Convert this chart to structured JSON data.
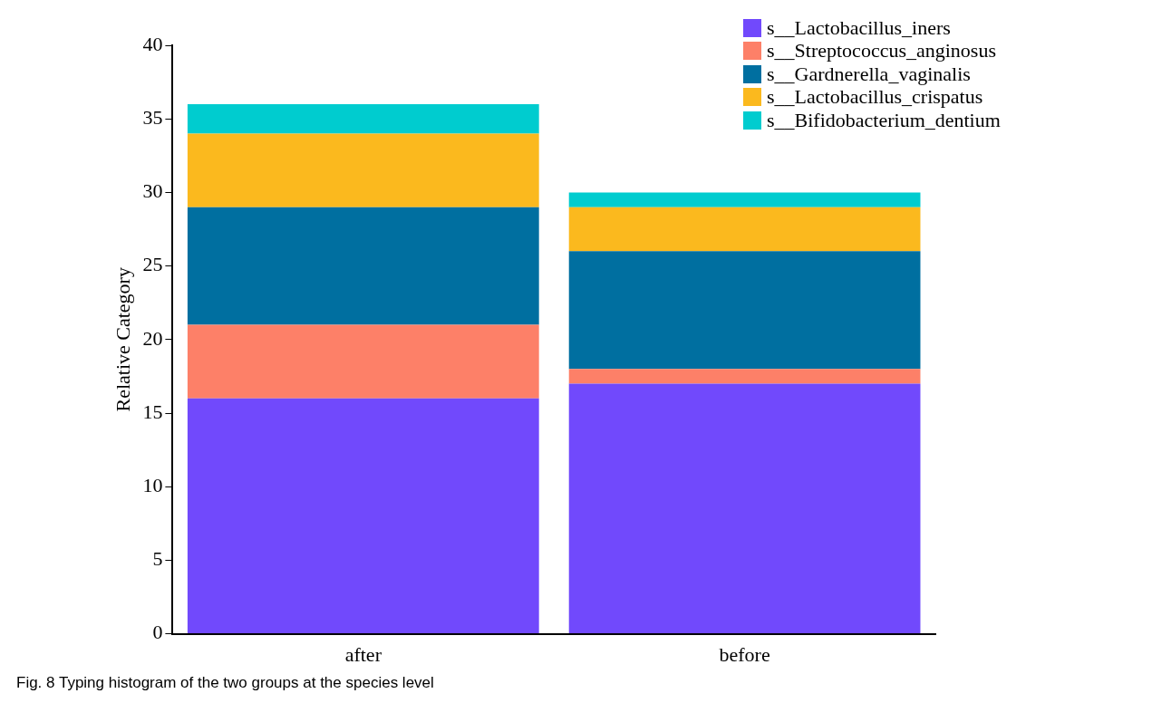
{
  "chart_data": {
    "type": "bar",
    "stacked": true,
    "ylabel": "Relative Category",
    "categories": [
      "after",
      "before"
    ],
    "series": [
      {
        "name": "s__Lactobacillus_iners",
        "color": "#7149fc",
        "values": [
          16,
          17
        ]
      },
      {
        "name": "s__Streptococcus_anginosus",
        "color": "#fd8068",
        "values": [
          5,
          1
        ]
      },
      {
        "name": "s__Gardnerella_vaginalis",
        "color": "#006fa0",
        "values": [
          8,
          8
        ]
      },
      {
        "name": "s__Lactobacillus_crispatus",
        "color": "#fbb91e",
        "values": [
          5,
          3
        ]
      },
      {
        "name": "s__Bifidobacterium_dentium",
        "color": "#00cccf",
        "values": [
          2,
          1
        ]
      }
    ],
    "ylim": [
      0,
      40
    ],
    "yticks": [
      0,
      5,
      10,
      15,
      20,
      25,
      30,
      35,
      40
    ],
    "grid": false,
    "legend": "top right",
    "annotations": [
      "Fig. 8 Typing histogram of the two groups at the species level"
    ]
  }
}
